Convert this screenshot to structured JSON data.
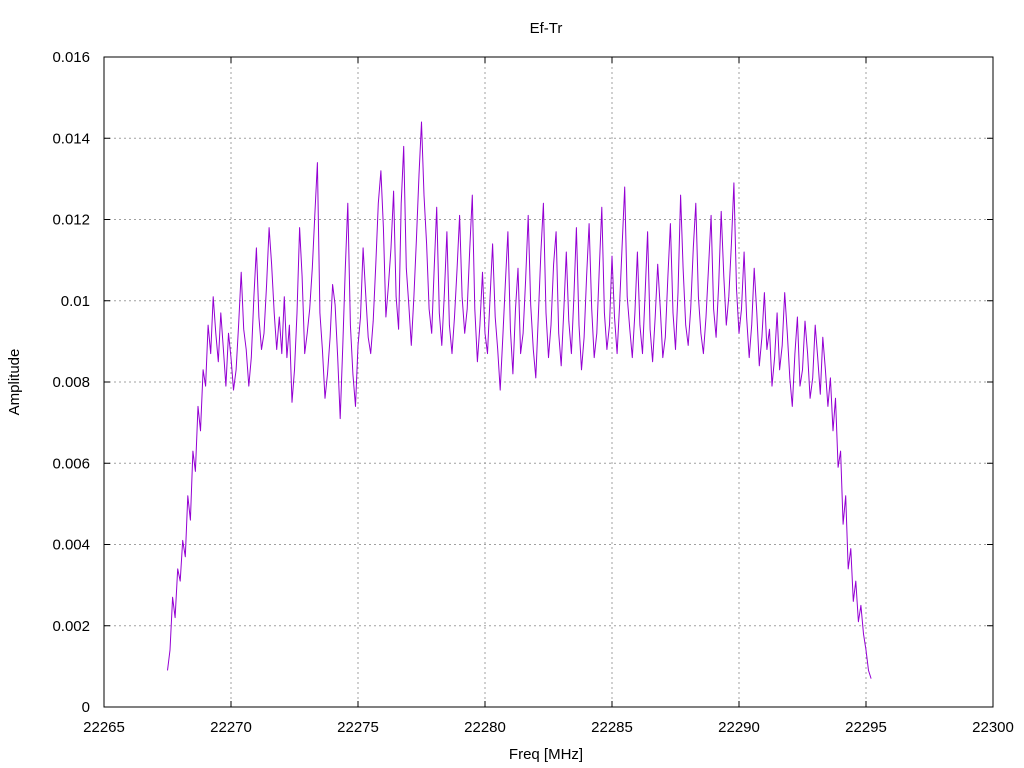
{
  "chart_data": {
    "type": "line",
    "title": "Ef-Tr",
    "xlabel": "Freq [MHz]",
    "ylabel": "Amplitude",
    "xlim": [
      22265,
      22300
    ],
    "ylim": [
      0,
      0.016
    ],
    "grid": true,
    "x_ticks": [
      "22265",
      "22270",
      "22275",
      "22280",
      "22285",
      "22290",
      "22295",
      "22300"
    ],
    "y_ticks": [
      "0",
      "0.002",
      "0.004",
      "0.006",
      "0.008",
      "0.01",
      "0.012",
      "0.014",
      "0.016"
    ],
    "series": [
      {
        "color": "#9400d3",
        "x_start": 22267.5,
        "x_step": 0.1,
        "values": [
          0.0009,
          0.0014,
          0.0027,
          0.0022,
          0.0034,
          0.0031,
          0.0041,
          0.0037,
          0.0052,
          0.0046,
          0.0063,
          0.0058,
          0.0074,
          0.0068,
          0.0083,
          0.0079,
          0.0094,
          0.0087,
          0.0101,
          0.0092,
          0.0085,
          0.0097,
          0.0088,
          0.0079,
          0.0092,
          0.0086,
          0.0078,
          0.0083,
          0.0094,
          0.0107,
          0.0093,
          0.0088,
          0.0079,
          0.0086,
          0.0101,
          0.0113,
          0.0096,
          0.0088,
          0.0092,
          0.0104,
          0.0118,
          0.0109,
          0.0097,
          0.0088,
          0.0096,
          0.0087,
          0.0101,
          0.0086,
          0.0094,
          0.0075,
          0.0083,
          0.0097,
          0.0118,
          0.0106,
          0.0087,
          0.0092,
          0.0098,
          0.0108,
          0.0121,
          0.0134,
          0.0097,
          0.0088,
          0.0076,
          0.0082,
          0.0091,
          0.0104,
          0.0099,
          0.0086,
          0.0071,
          0.0089,
          0.0108,
          0.0124,
          0.0094,
          0.0082,
          0.0074,
          0.0089,
          0.0096,
          0.0113,
          0.0102,
          0.0091,
          0.0087,
          0.0095,
          0.0109,
          0.0124,
          0.0132,
          0.0118,
          0.0096,
          0.0104,
          0.0113,
          0.0127,
          0.0101,
          0.0093,
          0.0124,
          0.0138,
          0.0108,
          0.0099,
          0.0089,
          0.0101,
          0.0115,
          0.0131,
          0.0144,
          0.0126,
          0.0114,
          0.0098,
          0.0092,
          0.0108,
          0.0123,
          0.0097,
          0.0089,
          0.0102,
          0.0117,
          0.0094,
          0.0087,
          0.0096,
          0.0108,
          0.0121,
          0.0101,
          0.0092,
          0.0098,
          0.0113,
          0.0126,
          0.0098,
          0.0085,
          0.0094,
          0.0107,
          0.0092,
          0.0087,
          0.0101,
          0.0114,
          0.0096,
          0.0088,
          0.0078,
          0.0091,
          0.0104,
          0.0117,
          0.0093,
          0.0082,
          0.0098,
          0.0108,
          0.0087,
          0.0092,
          0.0105,
          0.0121,
          0.0099,
          0.0088,
          0.0081,
          0.0096,
          0.0112,
          0.0124,
          0.0097,
          0.0086,
          0.0094,
          0.0109,
          0.0117,
          0.0092,
          0.0084,
          0.0097,
          0.0112,
          0.0095,
          0.0087,
          0.0101,
          0.0118,
          0.0094,
          0.0083,
          0.0091,
          0.0106,
          0.0119,
          0.0098,
          0.0086,
          0.0092,
          0.0108,
          0.0123,
          0.0097,
          0.0088,
          0.0094,
          0.0111,
          0.0096,
          0.0087,
          0.0099,
          0.0114,
          0.0128,
          0.0101,
          0.0093,
          0.0086,
          0.0097,
          0.0112,
          0.0094,
          0.0087,
          0.0101,
          0.0117,
          0.0093,
          0.0085,
          0.0096,
          0.0109,
          0.0098,
          0.0086,
          0.0091,
          0.0106,
          0.0119,
          0.0097,
          0.0088,
          0.0102,
          0.0126,
          0.0108,
          0.0094,
          0.0089,
          0.0098,
          0.0113,
          0.0124,
          0.0101,
          0.0092,
          0.0087,
          0.0096,
          0.0108,
          0.0121,
          0.0098,
          0.0091,
          0.0104,
          0.0122,
          0.0106,
          0.0094,
          0.0101,
          0.0114,
          0.0129,
          0.0103,
          0.0092,
          0.0098,
          0.0112,
          0.0096,
          0.0086,
          0.0094,
          0.0108,
          0.0097,
          0.0084,
          0.0091,
          0.0102,
          0.0088,
          0.0093,
          0.0079,
          0.0086,
          0.0097,
          0.0083,
          0.0089,
          0.0102,
          0.0092,
          0.0081,
          0.0074,
          0.0087,
          0.0096,
          0.0079,
          0.0083,
          0.0095,
          0.0087,
          0.0076,
          0.0081,
          0.0094,
          0.0086,
          0.0077,
          0.0091,
          0.0083,
          0.0074,
          0.0081,
          0.0068,
          0.0076,
          0.0059,
          0.0063,
          0.0045,
          0.0052,
          0.0034,
          0.0039,
          0.0026,
          0.0031,
          0.0021,
          0.0025,
          0.0018,
          0.0014,
          0.0009,
          0.0007
        ]
      }
    ]
  }
}
